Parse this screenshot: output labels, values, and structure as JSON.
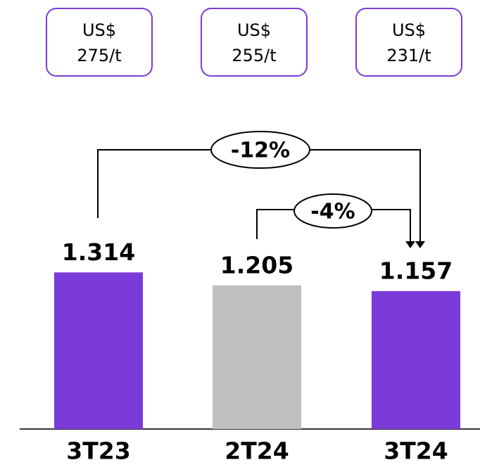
{
  "chart_data": {
    "type": "bar",
    "categories": [
      "3T23",
      "2T24",
      "3T24"
    ],
    "values": [
      1.314,
      1.205,
      1.157
    ],
    "colors": [
      "#7b3bd9",
      "#bfbfbf",
      "#7b3bd9"
    ],
    "price_boxes": [
      [
        "US$",
        "275/t"
      ],
      [
        "US$",
        "255/t"
      ],
      [
        "US$",
        "231/t"
      ]
    ],
    "annotations": [
      "-12%",
      "-4%"
    ]
  }
}
